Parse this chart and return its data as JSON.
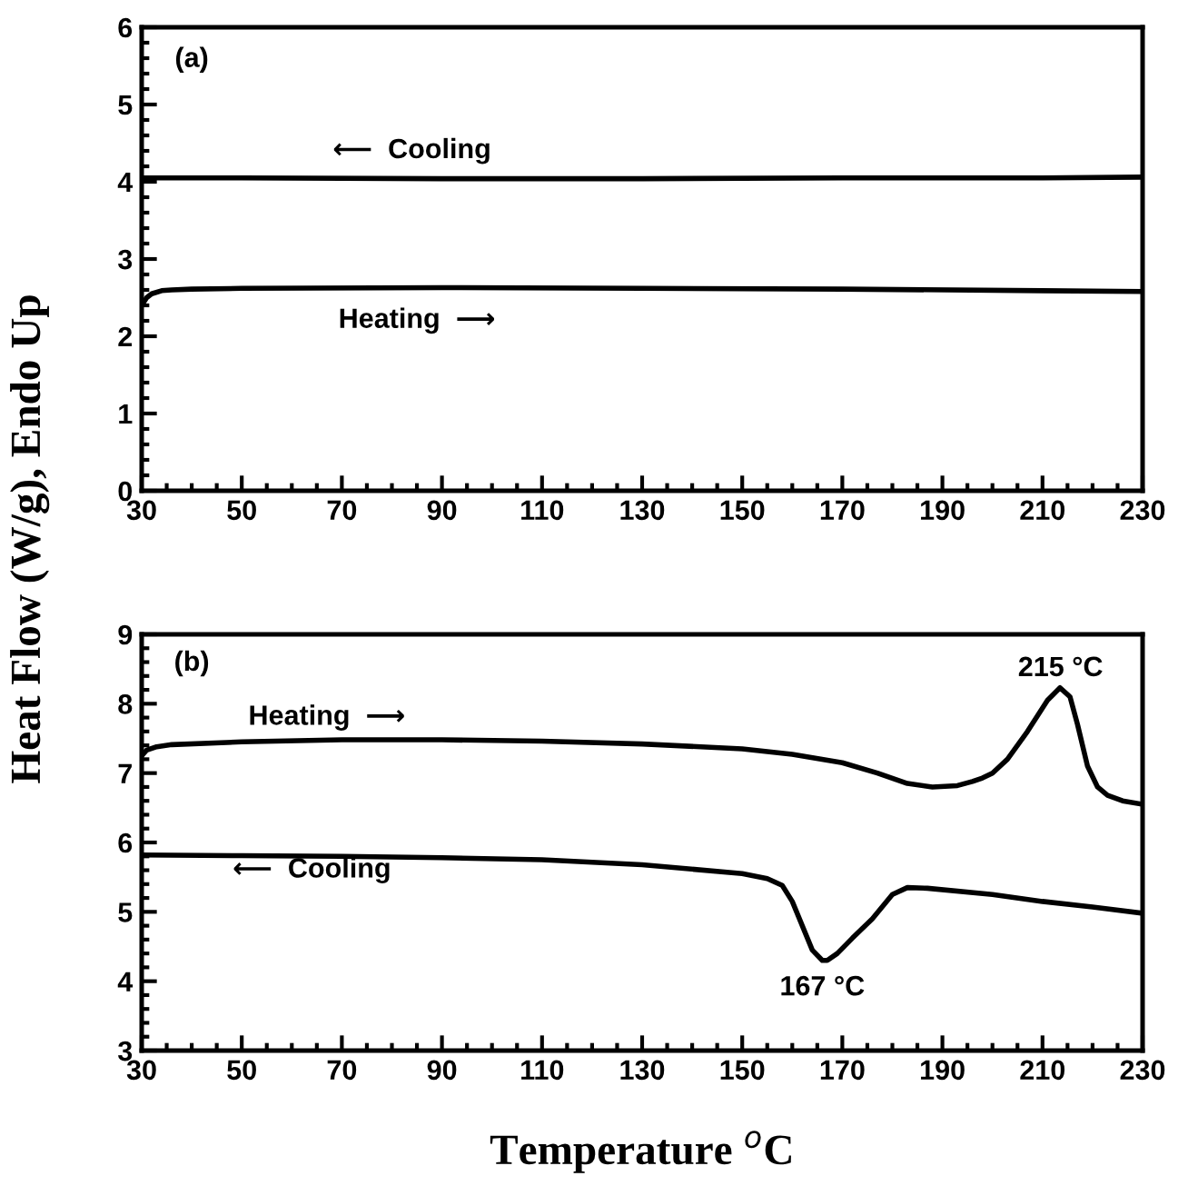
{
  "chart_data": [
    {
      "type": "line",
      "ylabel": "Heat Flow (W/g), Endo Up",
      "xlim": [
        30,
        230
      ],
      "xticks": [
        30,
        50,
        70,
        90,
        110,
        130,
        150,
        170,
        190,
        210,
        230
      ],
      "ylim": [
        0,
        6
      ],
      "yticks": [
        0,
        1,
        2,
        3,
        4,
        5,
        6
      ],
      "grid": false,
      "legend": false,
      "line_style": "solid",
      "marker": "none",
      "annotations": [
        "(a)",
        "⟵  Cooling",
        "Heating  ⟶"
      ],
      "series": [
        {
          "color": "#000000",
          "x": [
            30,
            50,
            90,
            130,
            170,
            210,
            230
          ],
          "values": [
            4.05,
            4.05,
            4.04,
            4.04,
            4.05,
            4.05,
            4.06
          ]
        },
        {
          "color": "#000000",
          "x": [
            30,
            31,
            32,
            34,
            36,
            40,
            50,
            90,
            130,
            170,
            210,
            230
          ],
          "values": [
            2.4,
            2.5,
            2.55,
            2.59,
            2.6,
            2.61,
            2.62,
            2.63,
            2.62,
            2.61,
            2.59,
            2.58
          ]
        }
      ]
    },
    {
      "type": "line",
      "xlabel": "Temperature $^{o}$C",
      "xlim": [
        30,
        230
      ],
      "xticks": [
        30,
        50,
        70,
        90,
        110,
        130,
        150,
        170,
        190,
        210,
        230
      ],
      "ylim": [
        3,
        9
      ],
      "yticks": [
        3,
        4,
        5,
        6,
        7,
        8,
        9
      ],
      "grid": false,
      "legend": false,
      "line_style": "solid",
      "marker": "none",
      "annotations": [
        "(b)",
        "Heating  ⟶",
        "⟵  Cooling",
        "215 °C",
        "167 °C"
      ],
      "series": [
        {
          "color": "#000000",
          "x": [
            30,
            31,
            33,
            36,
            50,
            70,
            90,
            110,
            130,
            150,
            160,
            170,
            177,
            183,
            188,
            193,
            196,
            198,
            200,
            203,
            207,
            211,
            213.5,
            215.5,
            217,
            219,
            221,
            223,
            226,
            230
          ],
          "values": [
            7.25,
            7.33,
            7.38,
            7.41,
            7.45,
            7.48,
            7.48,
            7.46,
            7.42,
            7.35,
            7.27,
            7.15,
            7.0,
            6.85,
            6.8,
            6.82,
            6.88,
            6.93,
            7.0,
            7.2,
            7.6,
            8.05,
            8.23,
            8.1,
            7.7,
            7.1,
            6.8,
            6.68,
            6.6,
            6.55
          ]
        },
        {
          "color": "#000000",
          "x": [
            30,
            50,
            70,
            90,
            110,
            130,
            150,
            155,
            158,
            160,
            162,
            164,
            166,
            167,
            169,
            172,
            176,
            180,
            183,
            187,
            200,
            210,
            220,
            230
          ],
          "values": [
            5.82,
            5.81,
            5.8,
            5.78,
            5.75,
            5.68,
            5.55,
            5.48,
            5.38,
            5.15,
            4.8,
            4.45,
            4.3,
            4.3,
            4.4,
            4.62,
            4.9,
            5.25,
            5.35,
            5.34,
            5.25,
            5.15,
            5.07,
            4.98
          ]
        }
      ]
    }
  ]
}
